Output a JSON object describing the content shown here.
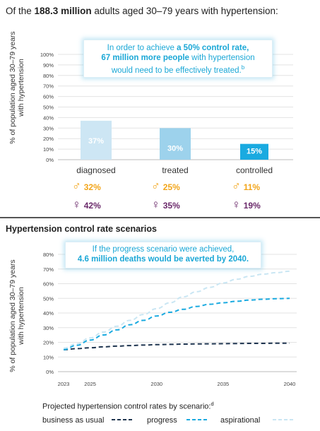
{
  "intro": {
    "prefix": "Of the ",
    "bold": "188.3 million",
    "suffix": " adults aged 30–79 years with hypertension:"
  },
  "ylabel_line1": "% of population aged 30–79 years",
  "ylabel_line2": "with hypertension",
  "callout1": {
    "line1_pre": "In order to achieve ",
    "line1_bold": "a 50% control rate,",
    "line2_bold": "67 million more people",
    "line2_post": " with hypertension",
    "line3": "would need to be effectively treated.",
    "line3_sup": "b"
  },
  "sex_breakdown": {
    "male_symbol": "♂",
    "female_symbol": "♀",
    "male_color": "#f2a51a",
    "female_color": "#6b2a6b",
    "male": [
      "32%",
      "25%",
      "11%"
    ],
    "female": [
      "42%",
      "35%",
      "19%"
    ]
  },
  "section2_title": "Hypertension control rate scenarios",
  "callout2": {
    "line1": "If the progress scenario were achieved,",
    "line2_bold": "4.6 million deaths would be averted by 2040."
  },
  "legend": {
    "title": "Projected hypertension control rates by scenario:",
    "title_sup": "d",
    "items": [
      "business as usual",
      "progress",
      "aspirational"
    ]
  },
  "chart_data": [
    {
      "type": "bar",
      "categories": [
        "diagnosed",
        "treated",
        "controlled"
      ],
      "values": [
        37,
        30,
        15
      ],
      "labels": [
        "37%",
        "30%",
        "15%"
      ],
      "colors": [
        "#cde6f4",
        "#9dd2ec",
        "#1aaae0"
      ],
      "ylim": [
        0,
        100
      ],
      "yticks": [
        "0%",
        "10%",
        "20%",
        "30%",
        "40%",
        "50%",
        "60%",
        "70%",
        "80%",
        "90%",
        "100%"
      ],
      "ylabel": "% of population aged 30–79 years with hypertension",
      "grid": true
    },
    {
      "type": "line",
      "x": [
        2023,
        2024,
        2025,
        2026,
        2027,
        2028,
        2029,
        2030,
        2031,
        2032,
        2033,
        2034,
        2035,
        2036,
        2037,
        2038,
        2039,
        2040
      ],
      "xticks": [
        "2023",
        "2025",
        "2030",
        "2035",
        "2040"
      ],
      "ylim": [
        0,
        80
      ],
      "yticks": [
        "0%",
        "10%",
        "20%",
        "30%",
        "40%",
        "50%",
        "60%",
        "70%",
        "80%"
      ],
      "ylabel": "% of population aged 30–79 years with hypertension",
      "grid": true,
      "series": [
        {
          "name": "business as usual",
          "color": "#1f3550",
          "values": [
            15,
            15.7,
            16.3,
            16.9,
            17.4,
            17.8,
            18.1,
            18.4,
            18.6,
            18.8,
            18.9,
            19.0,
            19.1,
            19.2,
            19.3,
            19.3,
            19.4,
            19.4
          ]
        },
        {
          "name": "progress",
          "color": "#1aaae0",
          "values": [
            15,
            18,
            21.5,
            25,
            28.5,
            32,
            35,
            38,
            40.5,
            42.5,
            44.5,
            46,
            47,
            48,
            48.8,
            49.4,
            49.8,
            50
          ]
        },
        {
          "name": "aspirational",
          "color": "#c9e6f3",
          "values": [
            16,
            19,
            23,
            27,
            31,
            35,
            39,
            43,
            47,
            51,
            54.5,
            57.5,
            60.5,
            63,
            65,
            66.5,
            67.5,
            68.5
          ]
        }
      ]
    }
  ]
}
